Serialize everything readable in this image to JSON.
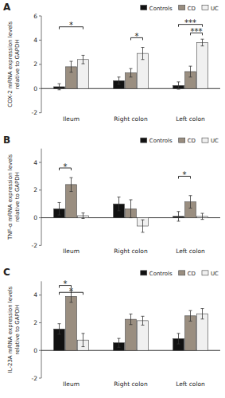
{
  "chart_data": [
    {
      "type": "bar",
      "title": "A",
      "y_label": "COX-2 mRNA expression levels\nrelative to GAPDH",
      "categories": [
        "Ileum",
        "Right colon",
        "Left colon"
      ],
      "series": [
        {
          "name": "Controls",
          "color": "#111111",
          "values": [
            0.15,
            0.65,
            0.25
          ],
          "errors": [
            0.25,
            0.3,
            0.3
          ]
        },
        {
          "name": "CD",
          "color": "#9a8e80",
          "values": [
            1.8,
            1.3,
            1.4
          ],
          "errors": [
            0.45,
            0.35,
            0.45
          ]
        },
        {
          "name": "UC",
          "color": "#f0f0f0",
          "values": [
            2.4,
            2.9,
            3.8
          ],
          "errors": [
            0.35,
            0.5,
            0.28
          ]
        }
      ],
      "ylim": [
        -2,
        6
      ],
      "yticks": [
        -2,
        0,
        2,
        4,
        6
      ],
      "legend": "upper right",
      "annotations": [
        {
          "text": "*",
          "y": 5.1,
          "from": {
            "category": "Ileum",
            "series": "Controls"
          },
          "to": {
            "category": "Ileum",
            "series": "UC"
          }
        },
        {
          "text": "*",
          "y": 4.2,
          "from": {
            "category": "Right colon",
            "series": "CD"
          },
          "to": {
            "category": "Right colon",
            "series": "UC"
          }
        },
        {
          "text": "***",
          "y": 5.3,
          "from": {
            "category": "Left colon",
            "series": "Controls"
          },
          "to": {
            "category": "Left colon",
            "series": "UC"
          }
        },
        {
          "text": "***",
          "y": 4.6,
          "from": {
            "category": "Left colon",
            "series": "CD"
          },
          "to": {
            "category": "Left colon",
            "series": "UC"
          }
        }
      ]
    },
    {
      "type": "bar",
      "title": "B",
      "y_label": "TNF-α mRNA expression levels\nrelative to GAPDH",
      "categories": [
        "Ileum",
        "Right colon",
        "Left colon"
      ],
      "series": [
        {
          "name": "Controls",
          "color": "#111111",
          "values": [
            0.65,
            1.0,
            0.1
          ],
          "errors": [
            0.45,
            0.5,
            0.35
          ]
        },
        {
          "name": "CD",
          "color": "#9a8e80",
          "values": [
            2.4,
            0.65,
            1.15
          ],
          "errors": [
            0.5,
            0.65,
            0.45
          ]
        },
        {
          "name": "UC",
          "color": "#f0f0f0",
          "values": [
            0.15,
            -0.6,
            0.1
          ],
          "errors": [
            0.2,
            0.45,
            0.22
          ]
        }
      ],
      "ylim": [
        -2,
        5
      ],
      "yticks": [
        -2,
        0,
        2,
        4
      ],
      "legend": "upper right",
      "annotations": [
        {
          "text": "*",
          "y": 3.6,
          "from": {
            "category": "Ileum",
            "series": "Controls"
          },
          "to": {
            "category": "Ileum",
            "series": "CD"
          }
        },
        {
          "text": "*",
          "y": 3.0,
          "from": {
            "category": "Left colon",
            "series": "Controls"
          },
          "to": {
            "category": "Left colon",
            "series": "CD"
          }
        }
      ]
    },
    {
      "type": "bar",
      "title": "C",
      "y_label": "IL-23A mRNA expression levels\nrelative to GAPDH",
      "categories": [
        "Ileum",
        "Right colon",
        "Left colon"
      ],
      "series": [
        {
          "name": "Controls",
          "color": "#111111",
          "values": [
            1.55,
            0.55,
            0.85
          ],
          "errors": [
            0.38,
            0.32,
            0.38
          ]
        },
        {
          "name": "CD",
          "color": "#9a8e80",
          "values": [
            3.9,
            2.25,
            2.5
          ],
          "errors": [
            0.42,
            0.38,
            0.38
          ]
        },
        {
          "name": "UC",
          "color": "#f0f0f0",
          "values": [
            0.75,
            2.15,
            2.65
          ],
          "errors": [
            0.48,
            0.32,
            0.38
          ]
        }
      ],
      "ylim": [
        -2,
        5
      ],
      "yticks": [
        -2,
        0,
        2,
        4
      ],
      "legend": "upper right",
      "annotations": [
        {
          "text": "*",
          "y": 4.7,
          "from": {
            "category": "Ileum",
            "series": "Controls"
          },
          "to": {
            "category": "Ileum",
            "series": "CD"
          }
        },
        {
          "text": "*",
          "y": 4.2,
          "from": {
            "category": "Ileum",
            "series": "Controls"
          },
          "to": {
            "category": "Ileum",
            "series": "UC"
          }
        }
      ]
    }
  ]
}
